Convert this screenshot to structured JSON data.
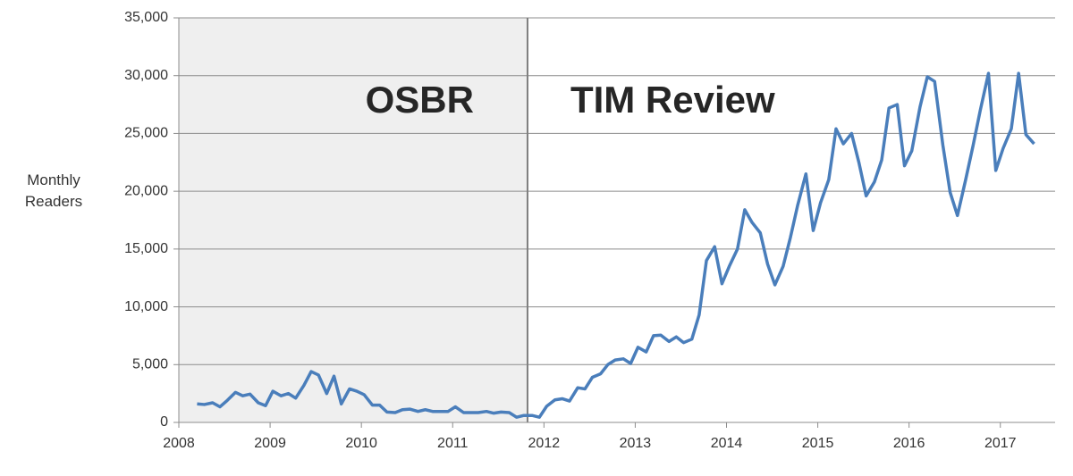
{
  "chart_data": {
    "type": "line",
    "y_label": "Monthly Readers",
    "annotations": [
      "OSBR",
      "TIM Review"
    ],
    "shaded_until": 2011.82,
    "xlim": [
      2008,
      2017.6
    ],
    "xticks": [
      2008,
      2009,
      2010,
      2011,
      2012,
      2013,
      2014,
      2015,
      2016,
      2017
    ],
    "ylim": [
      0,
      35000
    ],
    "yticks": [
      0,
      {
        "value": 5000,
        "label": "5,000"
      },
      {
        "value": 10000,
        "label": "10,000"
      },
      {
        "value": 15000,
        "label": "15,000"
      },
      {
        "value": 20000,
        "label": "20,000"
      },
      {
        "value": 25000,
        "label": "25,000"
      },
      {
        "value": 30000,
        "label": "30,000"
      },
      {
        "value": 35000,
        "label": "35,000"
      }
    ],
    "grid": true,
    "x": [
      2008.2,
      2008.28,
      2008.37,
      2008.45,
      2008.53,
      2008.62,
      2008.7,
      2008.78,
      2008.87,
      2008.95,
      2009.03,
      2009.12,
      2009.2,
      2009.28,
      2009.37,
      2009.45,
      2009.53,
      2009.62,
      2009.7,
      2009.78,
      2009.87,
      2009.95,
      2010.03,
      2010.12,
      2010.2,
      2010.28,
      2010.37,
      2010.45,
      2010.53,
      2010.62,
      2010.7,
      2010.78,
      2010.87,
      2010.95,
      2011.03,
      2011.12,
      2011.2,
      2011.28,
      2011.37,
      2011.45,
      2011.53,
      2011.62,
      2011.7,
      2011.78,
      2011.87,
      2011.95,
      2012.03,
      2012.12,
      2012.2,
      2012.28,
      2012.37,
      2012.45,
      2012.53,
      2012.62,
      2012.7,
      2012.78,
      2012.87,
      2012.95,
      2013.03,
      2013.12,
      2013.2,
      2013.28,
      2013.37,
      2013.45,
      2013.53,
      2013.62,
      2013.7,
      2013.78,
      2013.87,
      2013.95,
      2014.03,
      2014.12,
      2014.2,
      2014.28,
      2014.37,
      2014.45,
      2014.53,
      2014.62,
      2014.7,
      2014.78,
      2014.87,
      2014.95,
      2015.03,
      2015.12,
      2015.2,
      2015.28,
      2015.37,
      2015.45,
      2015.53,
      2015.62,
      2015.7,
      2015.78,
      2015.87,
      2015.95,
      2016.03,
      2016.12,
      2016.2,
      2016.28,
      2016.37,
      2016.45,
      2016.53,
      2016.62,
      2016.7,
      2016.78,
      2016.87,
      2016.95,
      2017.03,
      2017.12,
      2017.2,
      2017.28,
      2017.37
    ],
    "series": [
      {
        "color": "#4a7ebb",
        "values": [
          1600,
          1550,
          1700,
          1350,
          1900,
          2600,
          2300,
          2450,
          1700,
          1450,
          2700,
          2300,
          2500,
          2100,
          3200,
          4400,
          4100,
          2500,
          4000,
          1600,
          2900,
          2700,
          2400,
          1500,
          1500,
          900,
          850,
          1100,
          1150,
          950,
          1100,
          950,
          950,
          950,
          1350,
          850,
          850,
          850,
          950,
          800,
          900,
          850,
          450,
          600,
          600,
          450,
          1400,
          1950,
          2050,
          1850,
          3000,
          2900,
          3900,
          4200,
          5000,
          5400,
          5500,
          5100,
          6500,
          6100,
          7500,
          7550,
          7000,
          7400,
          6900,
          7200,
          9300,
          14000,
          15200,
          12000,
          13500,
          15000,
          18400,
          17300,
          16400,
          13700,
          11900,
          13500,
          16000,
          18800,
          21500,
          16600,
          19000,
          21000,
          25400,
          24100,
          25000,
          22500,
          19600,
          20800,
          22700,
          27200,
          27500,
          22200,
          23500,
          27300,
          29900,
          29500,
          24000,
          19900,
          17900,
          21000,
          23900,
          27000,
          30200,
          21800,
          23700,
          25400,
          30200,
          24900,
          24100
        ]
      }
    ]
  }
}
